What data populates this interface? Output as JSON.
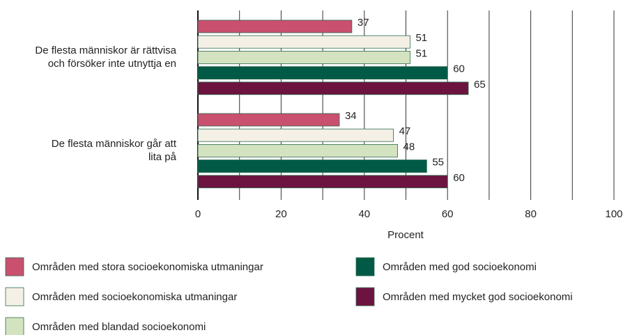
{
  "chart_data": {
    "type": "hbar",
    "x_label": "Procent",
    "categories": [
      "De flesta människor är rättvisa och försöker inte utnyttja en",
      "De flesta människor går att lita på"
    ],
    "series": [
      {
        "name": "Områden med stora socioekonomiska utmaningar",
        "color": "#c9506f",
        "values": [
          37,
          34
        ]
      },
      {
        "name": "Områden med socioekonomiska utmaningar",
        "color": "#f4f0e6",
        "values": [
          51,
          47
        ]
      },
      {
        "name": "Områden med blandad socioekonomi",
        "color": "#d3e2bf",
        "values": [
          51,
          48
        ]
      },
      {
        "name": "Områden med god socioekonomi",
        "color": "#005a46",
        "values": [
          60,
          55
        ]
      },
      {
        "name": "Områden med mycket god socioekonomi",
        "color": "#6d1340",
        "values": [
          65,
          60
        ]
      }
    ],
    "xlim": [
      0,
      100
    ],
    "xticks": [
      0,
      20,
      40,
      60,
      80,
      100
    ],
    "minor_xticks": [
      10,
      30,
      50,
      70,
      90
    ],
    "grid": true
  }
}
